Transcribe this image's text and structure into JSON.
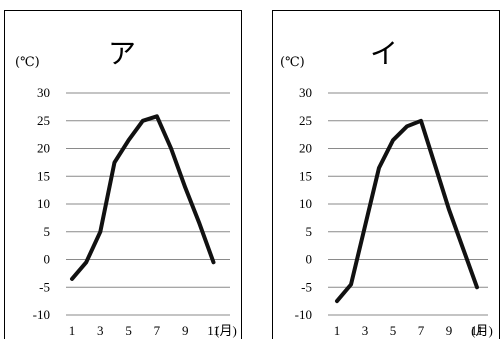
{
  "chart_data": [
    {
      "type": "line",
      "title": "ア",
      "unit": "(℃)",
      "x": [
        1,
        2,
        3,
        4,
        5,
        6,
        7,
        8,
        9,
        10,
        11,
        12
      ],
      "xticks": [
        "1",
        "3",
        "5",
        "7",
        "9",
        "11"
      ],
      "xunit": "(月)",
      "yticks": [
        "30",
        "25",
        "20",
        "15",
        "10",
        "5",
        "0",
        "-5",
        "-10"
      ],
      "ylim": [
        -10,
        30
      ],
      "grid": true,
      "series": [
        {
          "values": [
            -3.5,
            -0.5,
            5,
            17.5,
            21.5,
            25,
            25.8,
            20,
            13,
            6.5,
            -0.5,
            null
          ]
        }
      ]
    },
    {
      "type": "line",
      "title": "イ",
      "unit": "(℃)",
      "x": [
        1,
        2,
        3,
        4,
        5,
        6,
        7,
        8,
        9,
        10,
        11,
        12
      ],
      "xticks": [
        "1",
        "3",
        "5",
        "7",
        "9",
        "11"
      ],
      "xunit": "(月)",
      "yticks": [
        "30",
        "25",
        "20",
        "15",
        "10",
        "5",
        "0",
        "-5",
        "-10"
      ],
      "ylim": [
        -10,
        30
      ],
      "grid": true,
      "series": [
        {
          "values": [
            -7.5,
            -4.5,
            6,
            16.5,
            21.5,
            24,
            25,
            17,
            9,
            2,
            -5,
            null
          ]
        }
      ]
    }
  ]
}
